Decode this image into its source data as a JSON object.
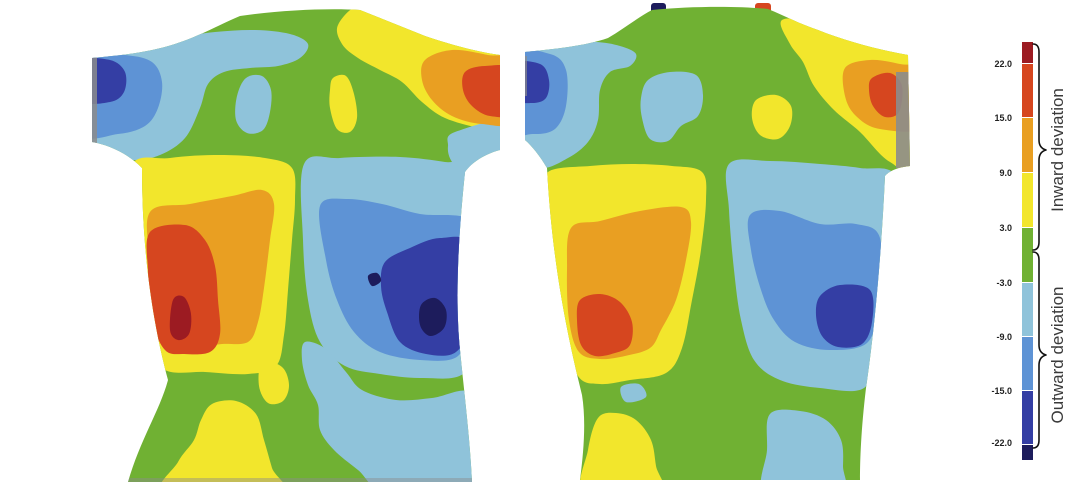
{
  "legend": {
    "ticks": [
      "22.0",
      "15.0",
      "9.0",
      "3.0",
      "-3.0",
      "-9.0",
      "-15.0",
      "-22.0"
    ],
    "inward_label": "Inward deviation",
    "outward_label": "Outward deviation"
  },
  "palette": {
    "dark_red": "#9c1b22",
    "red": "#d6461f",
    "orange": "#e99f22",
    "yellow": "#f2e62c",
    "green": "#70b133",
    "light_blue": "#8fc3da",
    "blue": "#5e93d5",
    "dark_blue": "#343ea4",
    "navy": "#1d1c5c",
    "gray": "#8c8c8c"
  }
}
